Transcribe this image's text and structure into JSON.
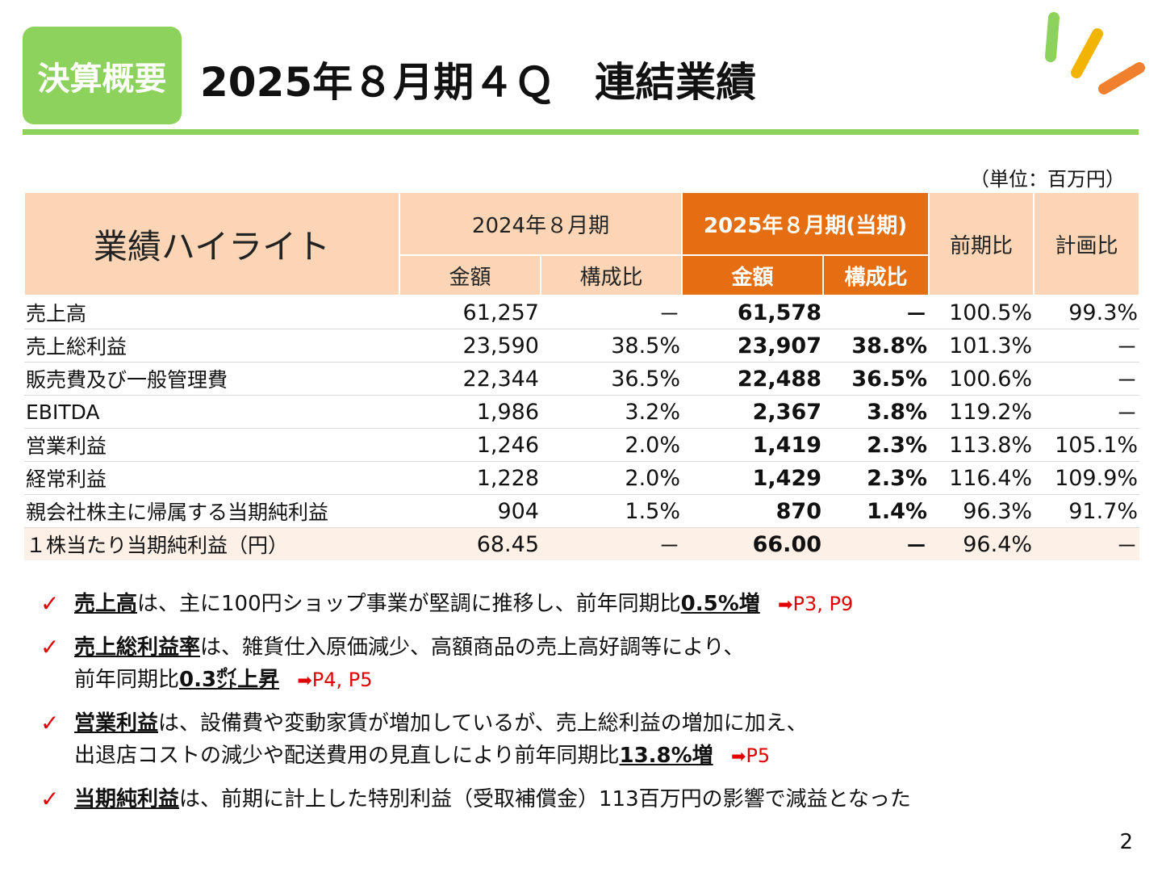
{
  "header": {
    "badge": "決算概要",
    "title": "2025年８月期４Ｑ　連結業績",
    "unit": "（単位：百万円）"
  },
  "table": {
    "title": "業績ハイライト",
    "prev_period": "2024年８月期",
    "cur_period": "2025年８月期(当期)",
    "yoy": "前期比",
    "vs_plan": "計画比",
    "amount": "金額",
    "ratio": "構成比",
    "rows": [
      {
        "label": "売上高",
        "prev_amount": "61,257",
        "prev_ratio": "－",
        "cur_amount": "61,578",
        "cur_ratio": "－",
        "yoy": "100.5%",
        "plan": "99.3%"
      },
      {
        "label": "売上総利益",
        "prev_amount": "23,590",
        "prev_ratio": "38.5%",
        "cur_amount": "23,907",
        "cur_ratio": "38.8%",
        "yoy": "101.3%",
        "plan": "－"
      },
      {
        "label": "販売費及び一般管理費",
        "prev_amount": "22,344",
        "prev_ratio": "36.5%",
        "cur_amount": "22,488",
        "cur_ratio": "36.5%",
        "yoy": "100.6%",
        "plan": "－"
      },
      {
        "label": "EBITDA",
        "prev_amount": "1,986",
        "prev_ratio": "3.2%",
        "cur_amount": "2,367",
        "cur_ratio": "3.8%",
        "yoy": "119.2%",
        "plan": "－"
      },
      {
        "label": "営業利益",
        "prev_amount": "1,246",
        "prev_ratio": "2.0%",
        "cur_amount": "1,419",
        "cur_ratio": "2.3%",
        "yoy": "113.8%",
        "plan": "105.1%"
      },
      {
        "label": "経常利益",
        "prev_amount": "1,228",
        "prev_ratio": "2.0%",
        "cur_amount": "1,429",
        "cur_ratio": "2.3%",
        "yoy": "116.4%",
        "plan": "109.9%"
      },
      {
        "label": "親会社株主に帰属する当期純利益",
        "prev_amount": "904",
        "prev_ratio": "1.5%",
        "cur_amount": "870",
        "cur_ratio": "1.4%",
        "yoy": "96.3%",
        "plan": "91.7%"
      },
      {
        "label": "１株当たり当期純利益（円）",
        "prev_amount": "68.45",
        "prev_ratio": "－",
        "cur_amount": "66.00",
        "cur_ratio": "－",
        "yoy": "96.4%",
        "plan": "－"
      }
    ]
  },
  "bullets": {
    "check": "✓",
    "b1": {
      "kw": "売上高",
      "text1": "は、主に100円ショップ事業が堅調に推移し、前年同期比",
      "em": "0.5%増",
      "arrow": "➡",
      "ref": "P3, P9"
    },
    "b2": {
      "kw": "売上総利益率",
      "text1": "は、雑貨仕入原価減少、高額商品の売上高好調等により、",
      "text2": "前年同期比",
      "em": "0.3㌽上昇",
      "arrow": "➡",
      "ref": "P4, P5"
    },
    "b3": {
      "kw": "営業利益",
      "text1": "は、設備費や変動家賃が増加しているが、売上総利益の増加に加え、",
      "text2": "出退店コストの減少や配送費用の見直しにより前年同期比",
      "em": "13.8%増",
      "arrow": "➡",
      "ref": "P5"
    },
    "b4": {
      "kw": "当期純利益",
      "text1": "は、前期に計上した特別利益（受取補償金）113百万円の影響で減益となった"
    }
  },
  "page": {
    "number": "2"
  },
  "colors": {
    "green": "#8cd25c",
    "orange": "#e56d12",
    "peach": "#fbd5b5",
    "red": "#e00000"
  }
}
